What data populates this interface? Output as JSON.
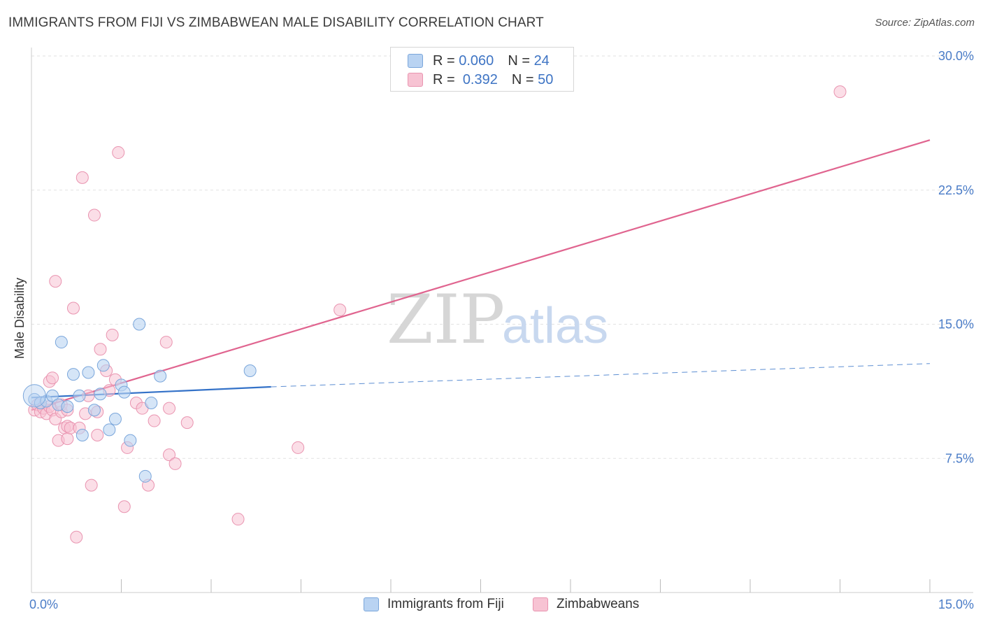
{
  "header": {
    "title": "IMMIGRANTS FROM FIJI VS ZIMBABWEAN MALE DISABILITY CORRELATION CHART",
    "source": "Source: ZipAtlas.com"
  },
  "watermark": {
    "zip": "ZIP",
    "atlas": "atlas"
  },
  "legend": {
    "fiji": {
      "r_label": "R =",
      "r_value": "0.060",
      "n_label": "N =",
      "n_value": "24"
    },
    "zimbabwe": {
      "r_label": "R =",
      "r_value": "0.392",
      "n_label": "N =",
      "n_value": "50"
    }
  },
  "colors": {
    "fiji_fill": "#b9d3f2",
    "fiji_stroke": "#7aa6db",
    "fiji_line": "#3472c8",
    "zim_fill": "#f7c3d3",
    "zim_stroke": "#e994b0",
    "zim_line": "#e0648f",
    "grid": "#e2e2e2",
    "tick_text": "#4a7cc7"
  },
  "chart_data": {
    "type": "scatter",
    "title": "IMMIGRANTS FROM FIJI VS ZIMBABWEAN MALE DISABILITY CORRELATION CHART",
    "xlabel": "",
    "ylabel": "Male Disability",
    "xlim": [
      0,
      15
    ],
    "ylim": [
      0,
      30
    ],
    "x_tick_labels": [
      "0.0%",
      "15.0%"
    ],
    "y_ticks": [
      7.5,
      15.0,
      22.5,
      30.0
    ],
    "y_tick_labels": [
      "7.5%",
      "15.0%",
      "22.5%",
      "30.0%"
    ],
    "grid": true,
    "legend_position": "bottom",
    "series": [
      {
        "name": "Immigrants from Fiji",
        "r": 0.06,
        "n": 24,
        "points": [
          [
            0.05,
            10.8
          ],
          [
            0.15,
            10.6
          ],
          [
            0.25,
            10.7
          ],
          [
            0.35,
            11.0
          ],
          [
            0.45,
            10.5
          ],
          [
            0.5,
            14.0
          ],
          [
            0.6,
            10.4
          ],
          [
            0.7,
            12.2
          ],
          [
            0.8,
            11.0
          ],
          [
            0.85,
            8.8
          ],
          [
            0.95,
            12.3
          ],
          [
            1.05,
            10.2
          ],
          [
            1.15,
            11.1
          ],
          [
            1.2,
            12.7
          ],
          [
            1.3,
            9.1
          ],
          [
            1.4,
            9.7
          ],
          [
            1.5,
            11.6
          ],
          [
            1.55,
            11.2
          ],
          [
            1.65,
            8.5
          ],
          [
            1.8,
            15.0
          ],
          [
            1.9,
            6.5
          ],
          [
            2.0,
            10.6
          ],
          [
            2.15,
            12.1
          ],
          [
            3.65,
            12.4
          ]
        ],
        "trend": {
          "x": [
            0,
            4.0
          ],
          "y": [
            10.9,
            11.5
          ],
          "dashed_extension": {
            "x": [
              4.0,
              15
            ],
            "y": [
              11.5,
              12.8
            ]
          }
        }
      },
      {
        "name": "Zimbabweans",
        "r": 0.392,
        "n": 50,
        "points": [
          [
            0.05,
            10.2
          ],
          [
            0.1,
            10.5
          ],
          [
            0.15,
            10.1
          ],
          [
            0.2,
            10.3
          ],
          [
            0.25,
            10.0
          ],
          [
            0.3,
            11.8
          ],
          [
            0.3,
            10.4
          ],
          [
            0.35,
            10.2
          ],
          [
            0.35,
            12.0
          ],
          [
            0.4,
            9.7
          ],
          [
            0.4,
            17.4
          ],
          [
            0.45,
            8.5
          ],
          [
            0.5,
            10.1
          ],
          [
            0.55,
            9.2
          ],
          [
            0.6,
            9.3
          ],
          [
            0.6,
            8.6
          ],
          [
            0.65,
            9.2
          ],
          [
            0.7,
            15.9
          ],
          [
            0.75,
            3.1
          ],
          [
            0.85,
            23.2
          ],
          [
            0.9,
            10.0
          ],
          [
            0.95,
            11.0
          ],
          [
            1.0,
            6.0
          ],
          [
            1.05,
            21.1
          ],
          [
            1.1,
            8.8
          ],
          [
            1.15,
            13.6
          ],
          [
            1.25,
            12.4
          ],
          [
            1.3,
            11.3
          ],
          [
            1.35,
            14.4
          ],
          [
            1.4,
            11.9
          ],
          [
            1.45,
            24.6
          ],
          [
            1.55,
            4.8
          ],
          [
            1.6,
            8.1
          ],
          [
            1.75,
            10.6
          ],
          [
            1.85,
            10.3
          ],
          [
            1.95,
            6.0
          ],
          [
            2.05,
            9.6
          ],
          [
            2.25,
            14.0
          ],
          [
            2.3,
            10.3
          ],
          [
            2.3,
            7.7
          ],
          [
            2.4,
            7.2
          ],
          [
            2.6,
            9.5
          ],
          [
            3.45,
            4.1
          ],
          [
            4.45,
            8.1
          ],
          [
            5.15,
            15.8
          ],
          [
            13.5,
            28.0
          ],
          [
            0.5,
            10.5
          ],
          [
            0.6,
            10.2
          ],
          [
            1.1,
            10.1
          ],
          [
            0.8,
            9.2
          ]
        ],
        "trend": {
          "x": [
            0,
            15
          ],
          "y": [
            10.2,
            25.3
          ]
        }
      }
    ]
  },
  "bottom_legend": {
    "fiji": "Immigrants from Fiji",
    "zimbabwe": "Zimbabweans"
  }
}
